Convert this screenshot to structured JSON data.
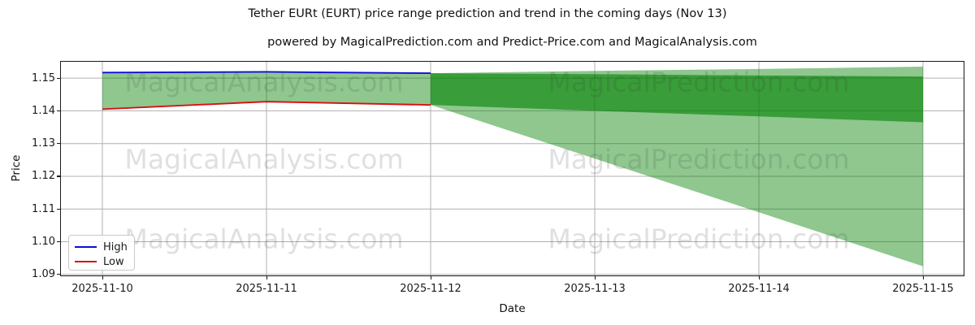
{
  "header": {
    "title": "Tether EURt (EURT) price range prediction and trend in the coming days (Nov 13)",
    "subtitle": "powered by MagicalPrediction.com and Predict-Price.com and MagicalAnalysis.com"
  },
  "chart_data": {
    "type": "line",
    "xlabel": "Date",
    "ylabel": "Price",
    "grid": true,
    "grid_color": "#b0b0b0",
    "x_tick_labels": [
      "2025-11-10",
      "2025-11-11",
      "2025-11-12",
      "2025-11-13",
      "2025-11-14",
      "2025-11-15"
    ],
    "y_ticks": [
      "1.09",
      "1.10",
      "1.11",
      "1.12",
      "1.13",
      "1.14",
      "1.15"
    ],
    "xlim_days": [
      -0.2525,
      5.2475
    ],
    "ylim": [
      1.0897,
      1.155
    ],
    "legend": {
      "position": "lower-left",
      "entries": [
        {
          "label": "High",
          "color": "#0d0dd6"
        },
        {
          "label": "Low",
          "color": "#d61212"
        }
      ]
    },
    "series": [
      {
        "name": "High",
        "color": "#0d0dd6",
        "x_days": [
          0,
          1,
          2
        ],
        "values": [
          1.1517,
          1.1519,
          1.1515
        ]
      },
      {
        "name": "Low",
        "color": "#d61212",
        "x_days": [
          0,
          1,
          2
        ],
        "values": [
          1.1405,
          1.1428,
          1.1418
        ]
      }
    ],
    "bands": [
      {
        "name": "history-range-fill",
        "fill": "rgba(0,128,0,0.44)",
        "x_days": [
          0,
          1,
          2
        ],
        "upper": [
          1.1517,
          1.1519,
          1.1515
        ],
        "lower": [
          1.1405,
          1.1428,
          1.1418
        ]
      },
      {
        "name": "forecast-fan-fill",
        "fill": "rgba(0,128,0,0.44)",
        "x_days": [
          2,
          3,
          4,
          5
        ],
        "upper": [
          1.1515,
          1.1522,
          1.1528,
          1.1535
        ],
        "lower": [
          1.1418,
          1.1254,
          1.109,
          1.0925
        ]
      },
      {
        "name": "forecast-trend-band",
        "fill": "rgba(0,128,0,0.6)",
        "x_days": [
          2,
          3,
          4,
          5
        ],
        "upper": [
          1.1515,
          1.1512,
          1.1508,
          1.1505
        ],
        "lower": [
          1.1418,
          1.14,
          1.1383,
          1.1365
        ]
      }
    ]
  },
  "watermarks": {
    "left_text": "MagicalAnalysis.com",
    "right_text": "MagicalPrediction.com",
    "rows": 3
  }
}
